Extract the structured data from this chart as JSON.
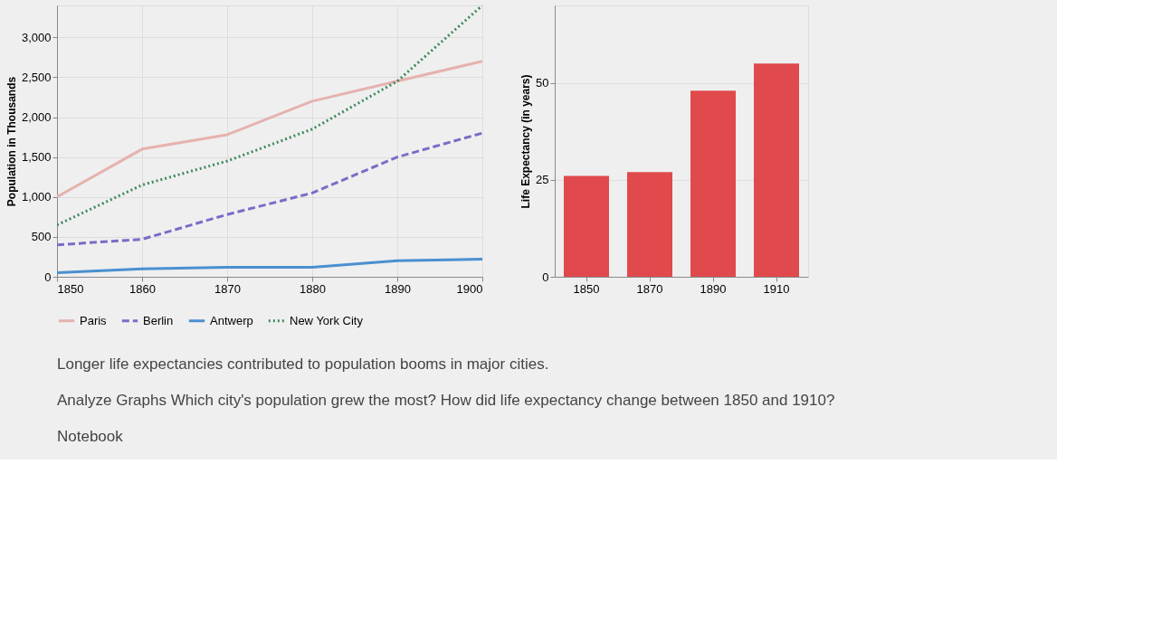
{
  "chart_data": [
    {
      "type": "line",
      "ylabel": "Population in Thousands",
      "x": [
        1850,
        1860,
        1870,
        1880,
        1890,
        1900
      ],
      "xlim": [
        1850,
        1900
      ],
      "xticks": [
        1850,
        1860,
        1870,
        1880,
        1890,
        1900
      ],
      "ylim": [
        0,
        3400
      ],
      "yticks": [
        {
          "value": 0,
          "label": "0"
        },
        {
          "value": 500,
          "label": "500"
        },
        {
          "value": 1000,
          "label": "1,000"
        },
        {
          "value": 1500,
          "label": "1,500"
        },
        {
          "value": 2000,
          "label": "2,000"
        },
        {
          "value": 2500,
          "label": "2,500"
        },
        {
          "value": 3000,
          "label": "3,000"
        }
      ],
      "grid": true,
      "legend": "bottom",
      "series": [
        {
          "name": "Paris",
          "color": "#e6b2ae",
          "line_style": "solid",
          "values": [
            1000,
            1600,
            1780,
            2200,
            2450,
            2700
          ]
        },
        {
          "name": "Berlin",
          "color": "#7a6cc8",
          "line_style": "dashed",
          "values": [
            400,
            470,
            780,
            1050,
            1500,
            1800
          ]
        },
        {
          "name": "Antwerp",
          "color": "#4a90d0",
          "line_style": "solid",
          "values": [
            50,
            100,
            120,
            120,
            200,
            220
          ]
        },
        {
          "name": "New York City",
          "color": "#3f8a5c",
          "line_style": "dotted",
          "values": [
            650,
            1150,
            1450,
            1850,
            2450,
            3400
          ]
        }
      ],
      "annotations": [
        "Longer life expectancies contributed to population booms in major cities.",
        "Analyze Graphs Which city's population grew the most? How did life expectancy change between 1850 and 1910?",
        "Notebook"
      ]
    },
    {
      "type": "bar",
      "ylabel": "Life Expectancy (in years)",
      "categories": [
        "1850",
        "1870",
        "1890",
        "1910"
      ],
      "values": [
        26,
        27,
        48,
        55
      ],
      "color": "#e04a4c",
      "ylim": [
        0,
        70
      ],
      "yticks": [
        0,
        25,
        50
      ],
      "grid": "y"
    }
  ]
}
